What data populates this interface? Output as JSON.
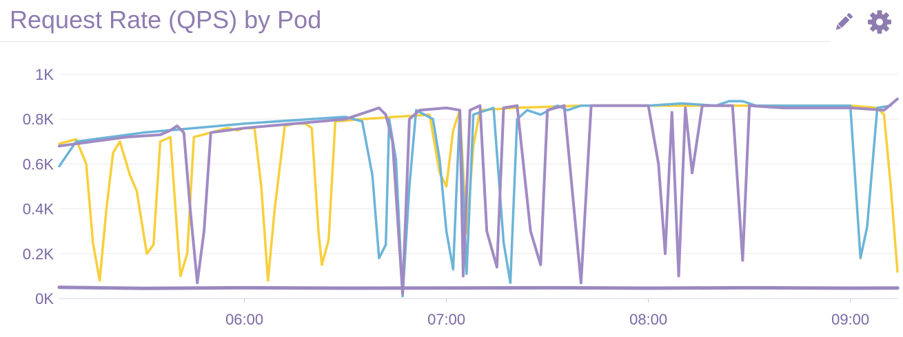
{
  "header": {
    "title": "Request Rate (QPS) by Pod",
    "icons": {
      "edit": "pencil-icon",
      "settings": "gear-icon"
    }
  },
  "colors": {
    "title": "#8e7cb0",
    "tick": "#7b68a6",
    "grid": "#e8e8ee",
    "icon": "#8e7cb0",
    "series": [
      "#f7cf3b",
      "#6cb4d8",
      "#a08bc4",
      "#9a87bf"
    ]
  },
  "chart_data": {
    "type": "line",
    "title": "Request Rate (QPS) by Pod",
    "xlabel": "",
    "ylabel": "",
    "xlim": [
      "05:05",
      "09:14"
    ],
    "ylim": [
      0,
      1000
    ],
    "yticks": [
      {
        "value": 0,
        "label": "0K"
      },
      {
        "value": 200,
        "label": "0.2K"
      },
      {
        "value": 400,
        "label": "0.4K"
      },
      {
        "value": 600,
        "label": "0.6K"
      },
      {
        "value": 800,
        "label": "0.8K"
      },
      {
        "value": 1000,
        "label": "1K"
      }
    ],
    "xticks": [
      {
        "value": "06:00",
        "label": "06:00"
      },
      {
        "value": "07:00",
        "label": "07:00"
      },
      {
        "value": "08:00",
        "label": "08:00"
      },
      {
        "value": "09:00",
        "label": "09:00"
      }
    ],
    "grid": "horizontal",
    "legend": "none",
    "series": [
      {
        "color": "#f7cf3b",
        "points": [
          [
            "05:05",
            690
          ],
          [
            "05:10",
            710
          ],
          [
            "05:13",
            600
          ],
          [
            "05:15",
            250
          ],
          [
            "05:17",
            80
          ],
          [
            "05:19",
            400
          ],
          [
            "05:21",
            650
          ],
          [
            "05:23",
            700
          ],
          [
            "05:26",
            550
          ],
          [
            "05:28",
            480
          ],
          [
            "05:31",
            200
          ],
          [
            "05:33",
            240
          ],
          [
            "05:35",
            700
          ],
          [
            "05:38",
            720
          ],
          [
            "05:40",
            300
          ],
          [
            "05:41",
            100
          ],
          [
            "05:43",
            200
          ],
          [
            "05:45",
            720
          ],
          [
            "05:50",
            740
          ],
          [
            "05:55",
            760
          ],
          [
            "05:58",
            750
          ],
          [
            "06:00",
            760
          ],
          [
            "06:03",
            760
          ],
          [
            "06:05",
            500
          ],
          [
            "06:07",
            80
          ],
          [
            "06:09",
            400
          ],
          [
            "06:12",
            770
          ],
          [
            "06:15",
            780
          ],
          [
            "06:18",
            780
          ],
          [
            "06:20",
            760
          ],
          [
            "06:22",
            300
          ],
          [
            "06:23",
            150
          ],
          [
            "06:25",
            260
          ],
          [
            "06:27",
            790
          ],
          [
            "06:35",
            800
          ],
          [
            "06:45",
            810
          ],
          [
            "06:55",
            820
          ],
          [
            "06:58",
            560
          ],
          [
            "07:00",
            500
          ],
          [
            "07:02",
            750
          ],
          [
            "07:04",
            840
          ],
          [
            "07:06",
            290
          ],
          [
            "07:08",
            680
          ],
          [
            "07:10",
            840
          ],
          [
            "07:20",
            850
          ],
          [
            "07:40",
            860
          ],
          [
            "08:00",
            860
          ],
          [
            "08:20",
            860
          ],
          [
            "08:40",
            860
          ],
          [
            "09:00",
            860
          ],
          [
            "09:08",
            850
          ],
          [
            "09:10",
            820
          ],
          [
            "09:12",
            500
          ],
          [
            "09:14",
            120
          ]
        ]
      },
      {
        "color": "#6cb4d8",
        "points": [
          [
            "05:05",
            590
          ],
          [
            "05:10",
            700
          ],
          [
            "05:30",
            740
          ],
          [
            "06:00",
            780
          ],
          [
            "06:30",
            810
          ],
          [
            "06:35",
            790
          ],
          [
            "06:38",
            550
          ],
          [
            "06:40",
            180
          ],
          [
            "06:42",
            240
          ],
          [
            "06:43",
            800
          ],
          [
            "06:45",
            620
          ],
          [
            "06:47",
            10
          ],
          [
            "06:49",
            500
          ],
          [
            "06:51",
            840
          ],
          [
            "06:56",
            800
          ],
          [
            "06:58",
            620
          ],
          [
            "07:00",
            300
          ],
          [
            "07:02",
            130
          ],
          [
            "07:04",
            840
          ],
          [
            "07:06",
            110
          ],
          [
            "07:08",
            820
          ],
          [
            "07:10",
            830
          ],
          [
            "07:14",
            850
          ],
          [
            "07:17",
            250
          ],
          [
            "07:19",
            70
          ],
          [
            "07:21",
            800
          ],
          [
            "07:24",
            840
          ],
          [
            "07:28",
            820
          ],
          [
            "07:33",
            860
          ],
          [
            "07:36",
            840
          ],
          [
            "07:40",
            860
          ],
          [
            "08:00",
            860
          ],
          [
            "08:10",
            870
          ],
          [
            "08:20",
            860
          ],
          [
            "08:24",
            880
          ],
          [
            "08:28",
            880
          ],
          [
            "08:32",
            860
          ],
          [
            "08:40",
            860
          ],
          [
            "09:00",
            860
          ],
          [
            "09:03",
            180
          ],
          [
            "09:05",
            320
          ],
          [
            "09:08",
            850
          ],
          [
            "09:12",
            860
          ]
        ]
      },
      {
        "color": "#a08bc4",
        "points": [
          [
            "05:05",
            680
          ],
          [
            "05:15",
            700
          ],
          [
            "05:25",
            720
          ],
          [
            "05:35",
            730
          ],
          [
            "05:38",
            750
          ],
          [
            "05:40",
            770
          ],
          [
            "05:42",
            740
          ],
          [
            "05:44",
            380
          ],
          [
            "05:46",
            70
          ],
          [
            "05:48",
            300
          ],
          [
            "05:50",
            740
          ],
          [
            "06:00",
            760
          ],
          [
            "06:30",
            800
          ],
          [
            "06:40",
            850
          ],
          [
            "06:42",
            820
          ],
          [
            "06:44",
            700
          ],
          [
            "06:47",
            20
          ],
          [
            "06:49",
            800
          ],
          [
            "06:52",
            840
          ],
          [
            "07:00",
            850
          ],
          [
            "07:04",
            840
          ],
          [
            "07:05",
            100
          ],
          [
            "07:07",
            840
          ],
          [
            "07:10",
            860
          ],
          [
            "07:12",
            300
          ],
          [
            "07:15",
            140
          ],
          [
            "07:17",
            850
          ],
          [
            "07:21",
            860
          ],
          [
            "07:25",
            300
          ],
          [
            "07:28",
            150
          ],
          [
            "07:30",
            840
          ],
          [
            "07:35",
            860
          ],
          [
            "07:40",
            70
          ],
          [
            "07:43",
            860
          ],
          [
            "08:00",
            860
          ],
          [
            "08:03",
            600
          ],
          [
            "08:05",
            200
          ],
          [
            "08:07",
            830
          ],
          [
            "08:09",
            100
          ],
          [
            "08:11",
            850
          ],
          [
            "08:13",
            560
          ],
          [
            "08:16",
            860
          ],
          [
            "08:25",
            860
          ],
          [
            "08:28",
            170
          ],
          [
            "08:30",
            860
          ],
          [
            "08:40",
            850
          ],
          [
            "08:50",
            850
          ],
          [
            "09:00",
            850
          ],
          [
            "09:10",
            840
          ],
          [
            "09:14",
            890
          ]
        ]
      },
      {
        "color": "#9a87bf",
        "points": [
          [
            "05:05",
            50
          ],
          [
            "05:30",
            45
          ],
          [
            "06:00",
            48
          ],
          [
            "06:30",
            46
          ],
          [
            "07:00",
            47
          ],
          [
            "07:30",
            48
          ],
          [
            "08:00",
            46
          ],
          [
            "08:30",
            48
          ],
          [
            "09:00",
            46
          ],
          [
            "09:14",
            47
          ]
        ]
      }
    ]
  }
}
